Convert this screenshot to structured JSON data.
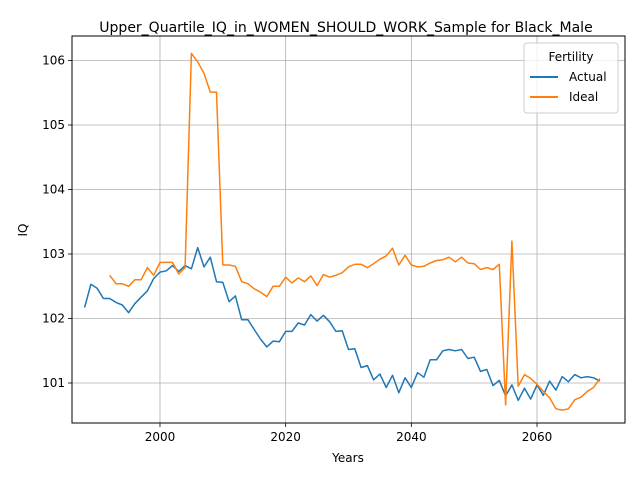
{
  "chart_data": {
    "type": "line",
    "title": "Upper_Quartile_IQ_in_WOMEN_SHOULD_WORK_Sample for Black_Male",
    "xlabel": "Years",
    "ylabel": "IQ",
    "xlim": [
      1986,
      2074
    ],
    "ylim": [
      100.38,
      106.38
    ],
    "xticks": [
      2000,
      2020,
      2040,
      2060
    ],
    "yticks": [
      101,
      102,
      103,
      104,
      105,
      106
    ],
    "grid": true,
    "legend": {
      "title": "Fertility",
      "position": "top-right"
    },
    "series": [
      {
        "name": "Actual",
        "color": "#1f77b4",
        "x": [
          1988,
          1989,
          1990,
          1991,
          1992,
          1993,
          1994,
          1995,
          1996,
          1997,
          1998,
          1999,
          2000,
          2001,
          2002,
          2003,
          2004,
          2005,
          2006,
          2007,
          2008,
          2009,
          2010,
          2011,
          2012,
          2013,
          2014,
          2015,
          2016,
          2017,
          2018,
          2019,
          2020,
          2021,
          2022,
          2023,
          2024,
          2025,
          2026,
          2027,
          2028,
          2029,
          2030,
          2031,
          2032,
          2033,
          2034,
          2035,
          2036,
          2037,
          2038,
          2039,
          2040,
          2041,
          2042,
          2043,
          2044,
          2045,
          2046,
          2047,
          2048,
          2049,
          2050,
          2051,
          2052,
          2053,
          2054,
          2055,
          2056,
          2057,
          2058,
          2059,
          2060,
          2061,
          2062,
          2063,
          2064,
          2065,
          2066,
          2067,
          2068,
          2069,
          2070
        ],
        "values": [
          102.17,
          102.53,
          102.47,
          102.31,
          102.31,
          102.25,
          102.21,
          102.09,
          102.23,
          102.33,
          102.43,
          102.62,
          102.72,
          102.74,
          102.82,
          102.73,
          102.82,
          102.77,
          103.1,
          102.8,
          102.95,
          102.57,
          102.56,
          102.26,
          102.35,
          101.98,
          101.98,
          101.83,
          101.68,
          101.56,
          101.65,
          101.64,
          101.8,
          101.8,
          101.93,
          101.9,
          102.06,
          101.96,
          102.05,
          101.95,
          101.8,
          101.81,
          101.52,
          101.53,
          101.24,
          101.27,
          101.05,
          101.14,
          100.93,
          101.12,
          100.85,
          101.08,
          100.93,
          101.16,
          101.09,
          101.36,
          101.36,
          101.5,
          101.52,
          101.5,
          101.52,
          101.38,
          101.4,
          101.18,
          101.21,
          100.96,
          101.04,
          100.8,
          100.97,
          100.73,
          100.92,
          100.75,
          100.97,
          100.81,
          101.03,
          100.89,
          101.1,
          101.02,
          101.13,
          101.08,
          101.1,
          101.08,
          101.03
        ]
      },
      {
        "name": "Ideal",
        "color": "#ff7f0e",
        "x": [
          1992,
          1993,
          1994,
          1995,
          1996,
          1997,
          1998,
          1999,
          2000,
          2001,
          2002,
          2003,
          2004,
          2005,
          2006,
          2007,
          2008,
          2009,
          2010,
          2011,
          2012,
          2013,
          2014,
          2015,
          2016,
          2017,
          2018,
          2019,
          2020,
          2021,
          2022,
          2023,
          2024,
          2025,
          2026,
          2027,
          2028,
          2029,
          2030,
          2031,
          2032,
          2033,
          2034,
          2035,
          2036,
          2037,
          2038,
          2039,
          2040,
          2041,
          2042,
          2043,
          2044,
          2045,
          2046,
          2047,
          2048,
          2049,
          2050,
          2051,
          2052,
          2053,
          2054,
          2055,
          2056,
          2057,
          2058,
          2059,
          2060,
          2061,
          2062,
          2063,
          2064,
          2065,
          2066,
          2067,
          2068,
          2069,
          2070
        ],
        "values": [
          102.67,
          102.54,
          102.54,
          102.5,
          102.6,
          102.6,
          102.79,
          102.67,
          102.87,
          102.87,
          102.87,
          102.69,
          102.79,
          106.11,
          105.98,
          105.8,
          105.51,
          105.51,
          102.83,
          102.83,
          102.81,
          102.57,
          102.54,
          102.46,
          102.41,
          102.34,
          102.5,
          102.5,
          102.64,
          102.55,
          102.63,
          102.57,
          102.66,
          102.51,
          102.68,
          102.64,
          102.67,
          102.71,
          102.8,
          102.84,
          102.84,
          102.79,
          102.85,
          102.92,
          102.97,
          103.09,
          102.83,
          102.98,
          102.83,
          102.8,
          102.81,
          102.86,
          102.9,
          102.91,
          102.95,
          102.88,
          102.95,
          102.86,
          102.85,
          102.76,
          102.79,
          102.76,
          102.84,
          100.66,
          103.2,
          100.95,
          101.13,
          101.07,
          100.98,
          100.87,
          100.77,
          100.6,
          100.58,
          100.6,
          100.74,
          100.78,
          100.87,
          100.93,
          101.07
        ]
      }
    ]
  }
}
